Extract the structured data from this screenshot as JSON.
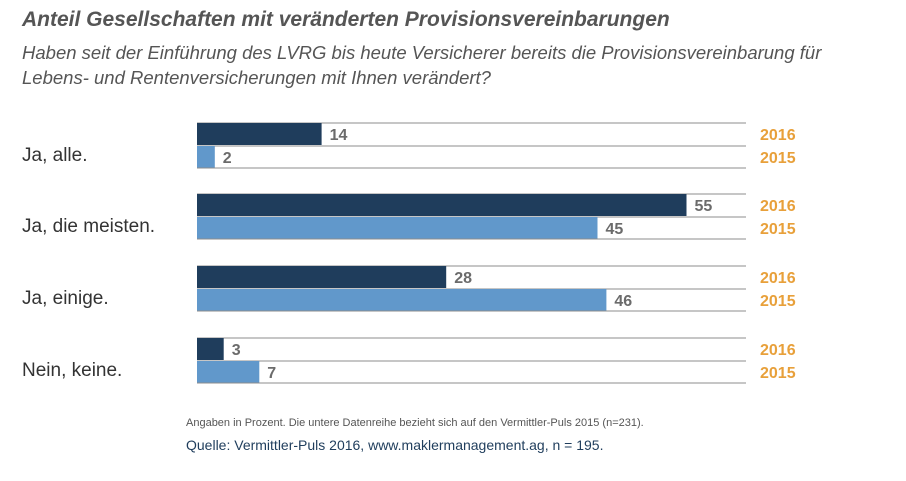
{
  "title": "Anteil Gesellschaften mit veränderten Provisionsvereinbarungen",
  "subtitle": "Haben seit der Einführung des LVRG bis heute Versicherer bereits die Provisionsvereinbarung für Lebens- und Rentenversicherungen mit Ihnen verändert?",
  "note": "Angaben in Prozent. Die untere Datenreihe bezieht sich auf den Vermittler-Puls 2015 (n=231).",
  "source": "Quelle: Vermittler-Puls 2016, www.maklermanagement.ag, n = 195.",
  "chart_data": {
    "type": "bar",
    "orientation": "horizontal",
    "categories": [
      "Ja, alle.",
      "Ja, die meisten.",
      "Ja, einige.",
      "Nein, keine."
    ],
    "series": [
      {
        "name": "2016",
        "values": [
          14,
          55,
          28,
          3
        ],
        "color": "#1f3d5c"
      },
      {
        "name": "2015",
        "values": [
          2,
          45,
          46,
          7
        ],
        "color": "#6198cb"
      }
    ],
    "xlim": [
      0,
      60
    ],
    "label_color": "#e8a03a",
    "value_label_color": "#6b6b6b",
    "grid": true
  }
}
